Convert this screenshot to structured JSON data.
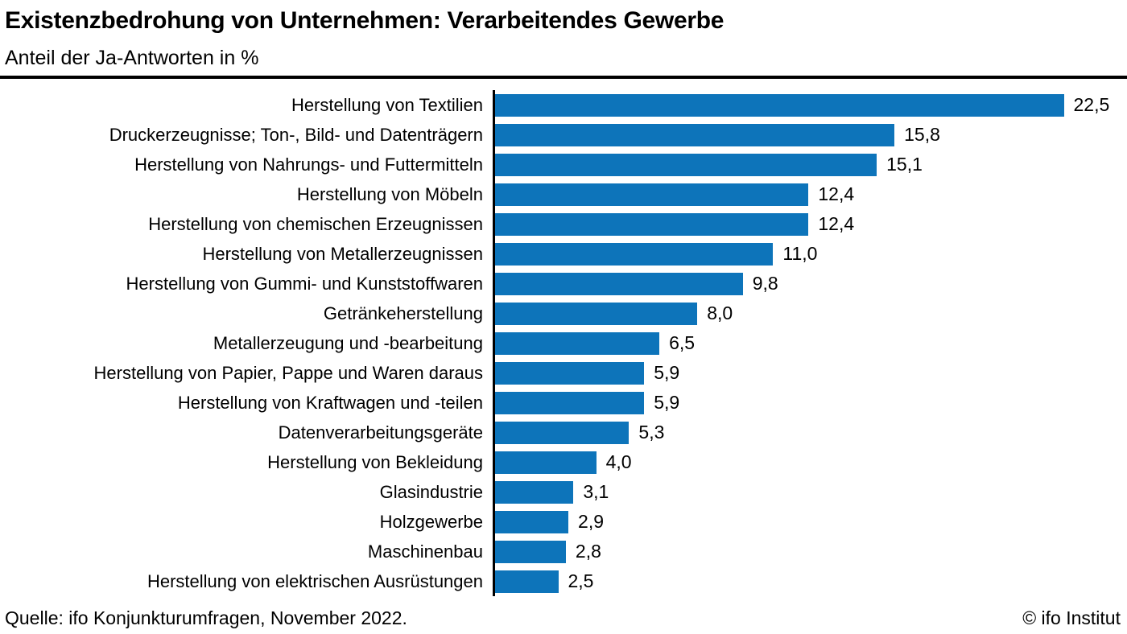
{
  "header": {
    "title": "Existenzbedrohung von Unternehmen: Verarbeitendes Gewerbe",
    "subtitle": "Anteil der Ja-Antworten in %"
  },
  "chart_data": {
    "type": "bar",
    "orientation": "horizontal",
    "title": "Existenzbedrohung von Unternehmen: Verarbeitendes Gewerbe",
    "subtitle": "Anteil der Ja-Antworten in %",
    "xlabel": "",
    "ylabel": "",
    "xlim": [
      0,
      25
    ],
    "grid": false,
    "legend": false,
    "bar_color": "#0d74ba",
    "categories": [
      "Herstellung von Textilien",
      "Druckerzeugnisse; Ton-, Bild- und Datenträgern",
      "Herstellung von Nahrungs- und Futtermitteln",
      "Herstellung von Möbeln",
      "Herstellung von chemischen Erzeugnissen",
      "Herstellung von Metallerzeugnissen",
      "Herstellung von Gummi- und Kunststoffwaren",
      "Getränkeherstellung",
      "Metallerzeugung und -bearbeitung",
      "Herstellung von Papier, Pappe und Waren daraus",
      "Herstellung von Kraftwagen und -teilen",
      "Datenverarbeitungsgeräte",
      "Herstellung von Bekleidung",
      "Glasindustrie",
      "Holzgewerbe",
      "Maschinenbau",
      "Herstellung von elektrischen Ausrüstungen"
    ],
    "values": [
      22.5,
      15.8,
      15.1,
      12.4,
      12.4,
      11.0,
      9.8,
      8.0,
      6.5,
      5.9,
      5.9,
      5.3,
      4.0,
      3.1,
      2.9,
      2.8,
      2.5
    ],
    "value_labels": [
      "22,5",
      "15,8",
      "15,1",
      "12,4",
      "12,4",
      "11,0",
      "9,8",
      "8,0",
      "6,5",
      "5,9",
      "5,9",
      "5,3",
      "4,0",
      "3,1",
      "2,9",
      "2,8",
      "2,5"
    ]
  },
  "footer": {
    "source": "Quelle: ifo Konjunkturumfragen, November 2022.",
    "copyright": "© ifo Institut"
  }
}
